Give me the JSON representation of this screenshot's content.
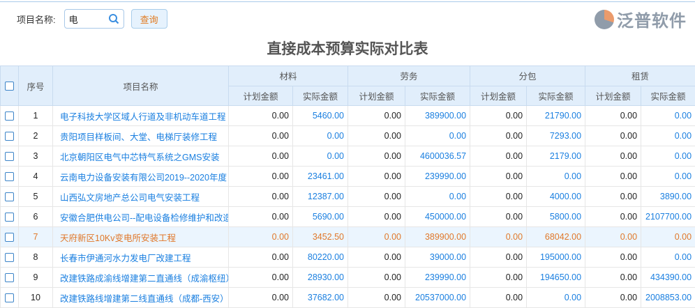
{
  "search": {
    "label": "项目名称:",
    "value": "电",
    "button": "查询"
  },
  "title": "直接成本预算实际对比表",
  "headers": {
    "index": "序号",
    "name": "项目名称",
    "groups": [
      "材料",
      "劳务",
      "分包",
      "租赁"
    ],
    "plan": "计划金额",
    "actual": "实际金额"
  },
  "rows": [
    {
      "idx": "1",
      "name": "电子科技大学区域人行道及非机动车道工程",
      "v": [
        "0.00",
        "5460.00",
        "0.00",
        "389900.00",
        "0.00",
        "21790.00",
        "0.00",
        "0.00"
      ]
    },
    {
      "idx": "2",
      "name": "贵阳项目样板间、大堂、电梯厅装修工程",
      "v": [
        "0.00",
        "0.00",
        "0.00",
        "0.00",
        "0.00",
        "7293.00",
        "0.00",
        "0.00"
      ]
    },
    {
      "idx": "3",
      "name": "北京朝阳区电气中芯特气系统之GMS安装",
      "v": [
        "0.00",
        "0.00",
        "0.00",
        "4600036.57",
        "0.00",
        "2179.00",
        "0.00",
        "0.00"
      ]
    },
    {
      "idx": "4",
      "name": "云南电力设备安装有限公司2019--2020年度",
      "v": [
        "0.00",
        "23461.00",
        "0.00",
        "239990.00",
        "0.00",
        "0.00",
        "0.00",
        "0.00"
      ]
    },
    {
      "idx": "5",
      "name": "山西弘文房地产总公司电气安装工程",
      "v": [
        "0.00",
        "12387.00",
        "0.00",
        "0.00",
        "0.00",
        "4000.00",
        "0.00",
        "3890.00"
      ]
    },
    {
      "idx": "6",
      "name": "安徽合肥供电公司--配电设备检修维护和改造",
      "v": [
        "0.00",
        "5690.00",
        "0.00",
        "450000.00",
        "0.00",
        "5800.00",
        "0.00",
        "2107700.00"
      ]
    },
    {
      "idx": "7",
      "name": "天府新区10Kv变电所安装工程",
      "v": [
        "0.00",
        "3452.50",
        "0.00",
        "389900.00",
        "0.00",
        "68042.00",
        "0.00",
        "0.00"
      ]
    },
    {
      "idx": "8",
      "name": "长春市伊通河水力发电厂改建工程",
      "v": [
        "0.00",
        "80220.00",
        "0.00",
        "39000.00",
        "0.00",
        "195000.00",
        "0.00",
        "0.00"
      ]
    },
    {
      "idx": "9",
      "name": "改建铁路成渝线增建第二直通线（成渝枢纽）",
      "v": [
        "0.00",
        "28930.00",
        "0.00",
        "239990.00",
        "0.00",
        "194650.00",
        "0.00",
        "434390.00"
      ]
    },
    {
      "idx": "10",
      "name": "改建铁路线增建第二线直通线（成都-西安）",
      "v": [
        "0.00",
        "37682.00",
        "0.00",
        "20537000.00",
        "0.00",
        "0.00",
        "0.00",
        "2008853.00"
      ]
    }
  ],
  "highlight_row": "7",
  "watermark": {
    "text": "泛普软件"
  },
  "colors": {
    "link": "#1a7fe0",
    "highlight": "#e0782a",
    "header_bg": "#e1eefb"
  }
}
